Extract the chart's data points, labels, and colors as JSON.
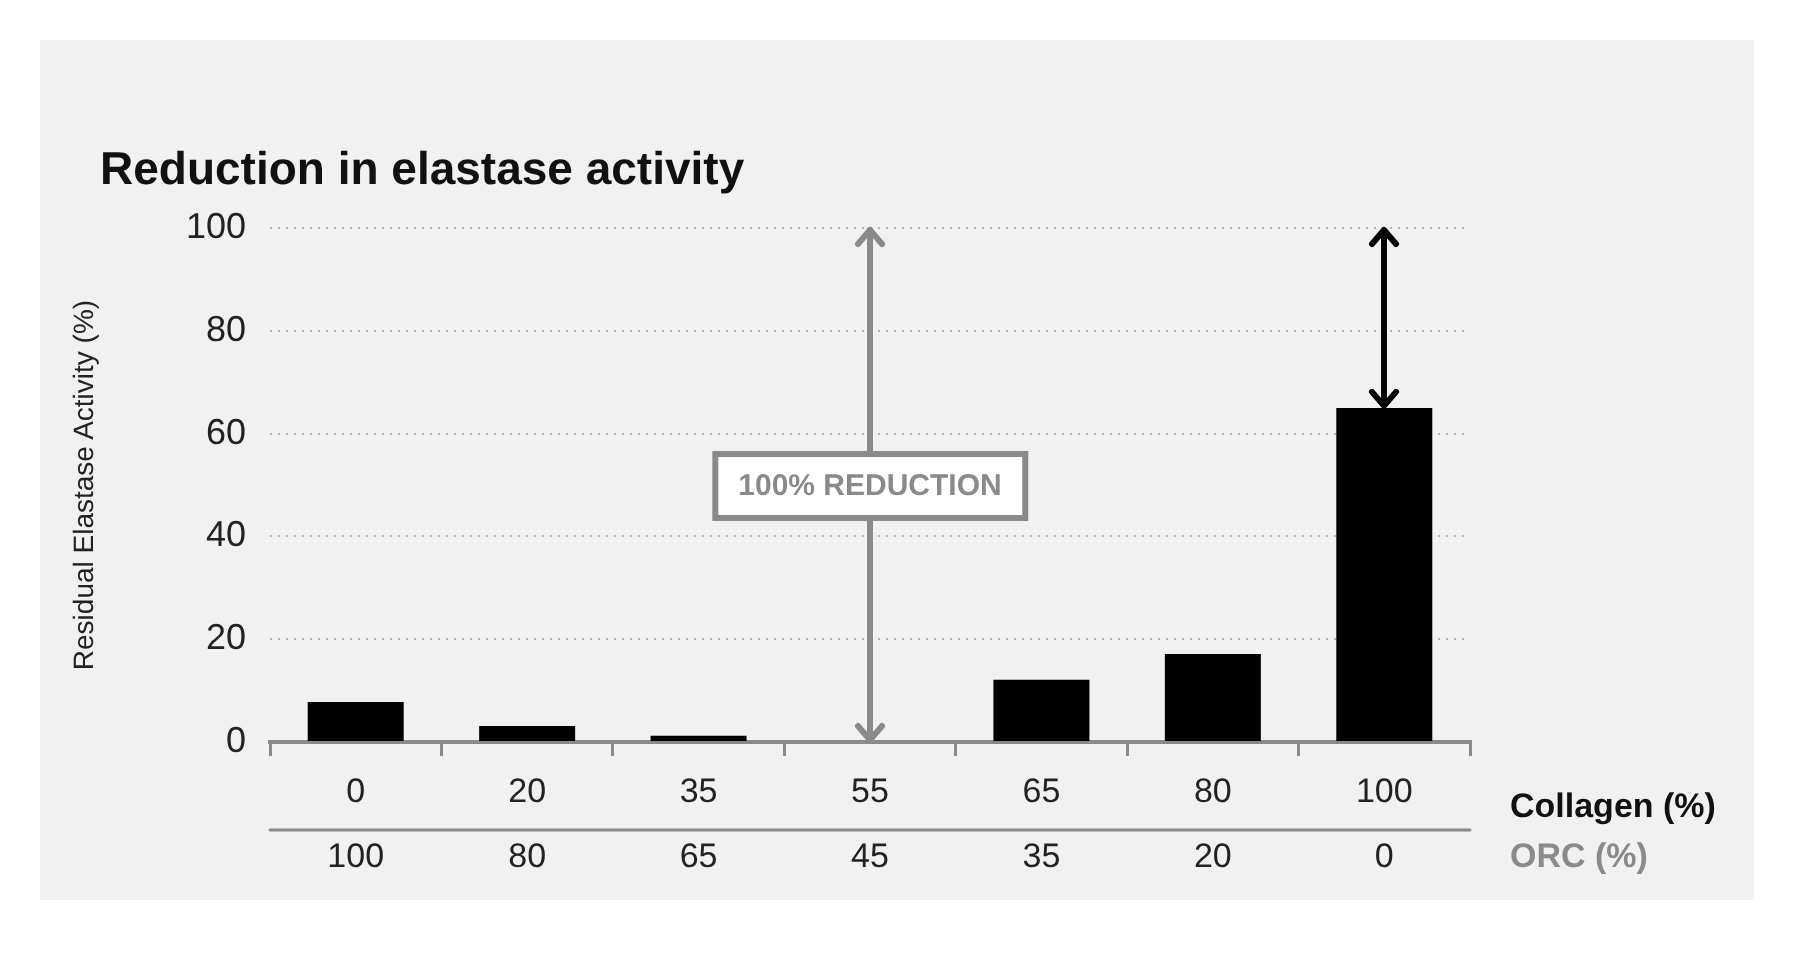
{
  "chart_data": {
    "type": "bar",
    "title": "Reduction in elastase activity",
    "ylabel": "Residual Elastase Activity (%)",
    "xlabel": "Collagen (%)",
    "categories": [
      "0",
      "20",
      "35",
      "55",
      "65",
      "80",
      "100"
    ],
    "values": [
      7.8,
      3.1,
      1.2,
      0,
      12.1,
      17.1,
      65
    ],
    "color": "#000000",
    "ylim": [
      0,
      100
    ],
    "yticks": [
      0,
      20,
      40,
      60,
      80,
      100
    ],
    "grid": "y",
    "ref_lines": [
      {
        "axis": "x",
        "value": "55",
        "label": "100% REDUCTION",
        "color": "#8a8a8a"
      }
    ],
    "annotations": [
      "ORC (%)",
      "100",
      "80",
      "65",
      "45",
      "35",
      "20",
      "0"
    ]
  }
}
